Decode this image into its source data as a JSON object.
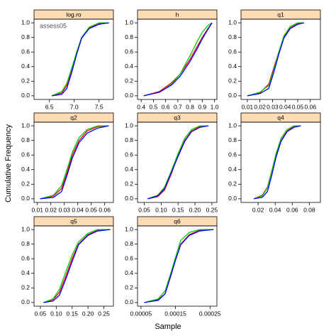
{
  "xlabel": "Sample",
  "ylabel": "Cumulative Frequency",
  "chart_data": [
    {
      "type": "line",
      "title": "log.ro",
      "annotation": "assess05",
      "x": [
        6.55,
        6.75,
        6.85,
        6.95,
        7.05,
        7.15,
        7.3,
        7.5,
        7.7
      ],
      "series": [
        {
          "color": "#ff0000",
          "values": [
            0,
            0.04,
            0.14,
            0.36,
            0.6,
            0.8,
            0.93,
            0.99,
            1
          ]
        },
        {
          "color": "#00cc00",
          "values": [
            0,
            0.06,
            0.17,
            0.38,
            0.6,
            0.8,
            0.94,
            1,
            1
          ]
        },
        {
          "color": "#0000ff",
          "values": [
            0,
            0.02,
            0.1,
            0.32,
            0.57,
            0.79,
            0.92,
            0.98,
            1
          ]
        }
      ],
      "xlim": [
        6.19,
        7.79
      ],
      "xticks": [
        {
          "value": 6.5,
          "label": "6.5"
        },
        {
          "value": 7,
          "label": "7.0"
        },
        {
          "value": 7.5,
          "label": "7.5"
        }
      ],
      "ylim": [
        -0.05,
        1.05
      ],
      "yticks": [
        {
          "value": 0,
          "label": "0.0"
        },
        {
          "value": 0.2,
          "label": "0.2"
        },
        {
          "value": 0.4,
          "label": "0.4"
        },
        {
          "value": 0.6,
          "label": "0.6"
        },
        {
          "value": 0.8,
          "label": "0.8"
        },
        {
          "value": 1,
          "label": "1.0"
        }
      ]
    },
    {
      "type": "line",
      "title": "h",
      "x": [
        0.42,
        0.55,
        0.65,
        0.72,
        0.8,
        0.86,
        0.9,
        0.95,
        0.98
      ],
      "series": [
        {
          "color": "#ff0000",
          "values": [
            0,
            0.06,
            0.18,
            0.3,
            0.5,
            0.68,
            0.8,
            0.93,
            1
          ]
        },
        {
          "color": "#00cc00",
          "values": [
            0,
            0.05,
            0.16,
            0.3,
            0.55,
            0.75,
            0.87,
            0.97,
            1
          ]
        },
        {
          "color": "#0000ff",
          "values": [
            0,
            0.05,
            0.15,
            0.27,
            0.47,
            0.65,
            0.78,
            0.92,
            1
          ]
        }
      ],
      "xlim": [
        0.37,
        1.02
      ],
      "xticks": [
        {
          "value": 0.4,
          "label": "0.4"
        },
        {
          "value": 0.5,
          "label": "0.5"
        },
        {
          "value": 0.6,
          "label": "0.6"
        },
        {
          "value": 0.7,
          "label": "0.7"
        },
        {
          "value": 0.8,
          "label": "0.8"
        },
        {
          "value": 0.9,
          "label": "0.9"
        },
        {
          "value": 1,
          "label": "1.0"
        }
      ],
      "ylim": [
        -0.05,
        1.05
      ],
      "yticks": [
        {
          "value": 0,
          "label": "0.0"
        },
        {
          "value": 0.2,
          "label": "0.2"
        },
        {
          "value": 0.4,
          "label": "0.4"
        },
        {
          "value": 0.6,
          "label": "0.6"
        },
        {
          "value": 0.8,
          "label": "0.8"
        },
        {
          "value": 1,
          "label": "1.0"
        }
      ]
    },
    {
      "type": "line",
      "title": "q1",
      "x": [
        0.01,
        0.02,
        0.027,
        0.031,
        0.035,
        0.039,
        0.044,
        0.05,
        0.055
      ],
      "series": [
        {
          "color": "#ff0000",
          "values": [
            0,
            0.04,
            0.16,
            0.38,
            0.6,
            0.8,
            0.93,
            0.99,
            1
          ]
        },
        {
          "color": "#00cc00",
          "values": [
            0,
            0.05,
            0.14,
            0.35,
            0.6,
            0.82,
            0.95,
            1,
            1
          ]
        },
        {
          "color": "#0000ff",
          "values": [
            0,
            0.03,
            0.1,
            0.32,
            0.57,
            0.79,
            0.92,
            0.98,
            1
          ]
        }
      ],
      "xlim": [
        0.005,
        0.068
      ],
      "xticks": [
        0.01,
        0.02,
        0.03,
        0.04,
        0.05,
        0.06
      ],
      "ylim": [
        -0.05,
        1.05
      ],
      "yticks": [
        {
          "value": 0,
          "label": "0.0"
        },
        {
          "value": 0.2,
          "label": "0.2"
        },
        {
          "value": 0.4,
          "label": "0.4"
        },
        {
          "value": 0.6,
          "label": "0.6"
        },
        {
          "value": 0.8,
          "label": "0.8"
        },
        {
          "value": 1,
          "label": "1.0"
        }
      ]
    },
    {
      "type": "line",
      "title": "q2",
      "x": [
        0.012,
        0.022,
        0.028,
        0.032,
        0.036,
        0.041,
        0.047,
        0.055,
        0.063
      ],
      "series": [
        {
          "color": "#ff0000",
          "values": [
            0,
            0.04,
            0.14,
            0.36,
            0.6,
            0.8,
            0.93,
            0.99,
            1
          ]
        },
        {
          "color": "#00cc00",
          "values": [
            0,
            0.05,
            0.18,
            0.4,
            0.64,
            0.84,
            0.95,
            1,
            1
          ]
        },
        {
          "color": "#0000ff",
          "values": [
            0,
            0.02,
            0.1,
            0.32,
            0.56,
            0.77,
            0.9,
            0.97,
            1
          ]
        }
      ],
      "xlim": [
        0.0075,
        0.0665
      ],
      "xticks": [
        0.01,
        0.02,
        0.03,
        0.04,
        0.05,
        0.06
      ],
      "ylim": [
        -0.05,
        1.05
      ],
      "yticks": [
        {
          "value": 0,
          "label": "0.0"
        },
        {
          "value": 0.2,
          "label": "0.2"
        },
        {
          "value": 0.4,
          "label": "0.4"
        },
        {
          "value": 0.6,
          "label": "0.6"
        },
        {
          "value": 0.8,
          "label": "0.8"
        },
        {
          "value": 1,
          "label": "1.0"
        }
      ]
    },
    {
      "type": "line",
      "title": "q3",
      "x": [
        0.06,
        0.09,
        0.11,
        0.13,
        0.15,
        0.17,
        0.19,
        0.215,
        0.24
      ],
      "series": [
        {
          "color": "#ff0000",
          "values": [
            0,
            0.03,
            0.12,
            0.34,
            0.6,
            0.8,
            0.93,
            0.99,
            1
          ]
        },
        {
          "color": "#00cc00",
          "values": [
            0,
            0.05,
            0.16,
            0.38,
            0.62,
            0.83,
            0.95,
            1,
            1
          ]
        },
        {
          "color": "#0000ff",
          "values": [
            0,
            0.04,
            0.14,
            0.36,
            0.58,
            0.79,
            0.92,
            0.98,
            1
          ]
        }
      ],
      "xlim": [
        0.03,
        0.265
      ],
      "xticks": [
        {
          "value": 0.05,
          "label": "0.05"
        },
        {
          "value": 0.1,
          "label": "0.10"
        },
        {
          "value": 0.15,
          "label": "0.15"
        },
        {
          "value": 0.2,
          "label": "0.20"
        },
        {
          "value": 0.25,
          "label": "0.25"
        }
      ],
      "ylim": [
        -0.05,
        1.05
      ],
      "yticks": [
        {
          "value": 0,
          "label": "0.0"
        },
        {
          "value": 0.2,
          "label": "0.2"
        },
        {
          "value": 0.4,
          "label": "0.4"
        },
        {
          "value": 0.6,
          "label": "0.6"
        },
        {
          "value": 0.8,
          "label": "0.8"
        },
        {
          "value": 1,
          "label": "1.0"
        }
      ]
    },
    {
      "type": "line",
      "title": "q4",
      "x": [
        0.015,
        0.025,
        0.031,
        0.036,
        0.041,
        0.047,
        0.054,
        0.062,
        0.07
      ],
      "series": [
        {
          "color": "#ff0000",
          "values": [
            0,
            0.05,
            0.16,
            0.38,
            0.6,
            0.8,
            0.93,
            0.99,
            1
          ]
        },
        {
          "color": "#00cc00",
          "values": [
            0,
            0.04,
            0.15,
            0.37,
            0.62,
            0.83,
            0.95,
            1,
            1
          ]
        },
        {
          "color": "#0000ff",
          "values": [
            0,
            0.02,
            0.1,
            0.32,
            0.57,
            0.79,
            0.92,
            0.98,
            1
          ]
        }
      ],
      "xlim": [
        0.0,
        0.093
      ],
      "xticks": [
        0.02,
        0.04,
        0.06,
        0.08
      ],
      "ylim": [
        -0.05,
        1.05
      ],
      "yticks": [
        {
          "value": 0,
          "label": "0.0"
        },
        {
          "value": 0.2,
          "label": "0.2"
        },
        {
          "value": 0.4,
          "label": "0.4"
        },
        {
          "value": 0.6,
          "label": "0.6"
        },
        {
          "value": 0.8,
          "label": "0.8"
        },
        {
          "value": 1,
          "label": "1.0"
        }
      ]
    },
    {
      "type": "line",
      "title": "q5",
      "x": [
        0.06,
        0.09,
        0.11,
        0.13,
        0.15,
        0.17,
        0.2,
        0.23,
        0.27
      ],
      "series": [
        {
          "color": "#ff0000",
          "values": [
            0,
            0.04,
            0.14,
            0.36,
            0.6,
            0.8,
            0.93,
            0.99,
            1
          ]
        },
        {
          "color": "#00cc00",
          "values": [
            0,
            0.05,
            0.18,
            0.42,
            0.65,
            0.83,
            0.95,
            1,
            1
          ]
        },
        {
          "color": "#0000ff",
          "values": [
            0,
            0.02,
            0.1,
            0.32,
            0.56,
            0.79,
            0.92,
            0.98,
            1
          ]
        }
      ],
      "xlim": [
        0.03,
        0.28
      ],
      "xticks": [
        {
          "value": 0.05,
          "label": "0.05"
        },
        {
          "value": 0.1,
          "label": "0.10"
        },
        {
          "value": 0.15,
          "label": "0.15"
        },
        {
          "value": 0.2,
          "label": "0.20"
        },
        {
          "value": 0.25,
          "label": "0.25"
        }
      ],
      "ylim": [
        -0.05,
        1.05
      ],
      "yticks": [
        {
          "value": 0,
          "label": "0.0"
        },
        {
          "value": 0.2,
          "label": "0.2"
        },
        {
          "value": 0.4,
          "label": "0.4"
        },
        {
          "value": 0.6,
          "label": "0.6"
        },
        {
          "value": 0.8,
          "label": "0.8"
        },
        {
          "value": 1,
          "label": "1.0"
        }
      ]
    },
    {
      "type": "line",
      "title": "q6",
      "x": [
        6e-05,
        0.0001,
        0.00012,
        0.000135,
        0.00015,
        0.000165,
        0.00019,
        0.00022,
        0.00026
      ],
      "series": [
        {
          "color": "#ff0000",
          "values": [
            0,
            0.04,
            0.12,
            0.34,
            0.58,
            0.8,
            0.93,
            0.99,
            1
          ]
        },
        {
          "color": "#00cc00",
          "values": [
            0,
            0.05,
            0.16,
            0.38,
            0.62,
            0.85,
            0.96,
            1,
            1
          ]
        },
        {
          "color": "#0000ff",
          "values": [
            0,
            0.03,
            0.12,
            0.35,
            0.58,
            0.79,
            0.92,
            0.98,
            1
          ]
        }
      ],
      "xlim": [
        4e-05,
        0.00027
      ],
      "xticks": [
        {
          "value": 5e-05,
          "label": "0.00005"
        },
        {
          "value": 0.00015,
          "label": "0.00015"
        },
        {
          "value": 0.00025,
          "label": "0.00025"
        }
      ],
      "ylim": [
        -0.05,
        1.05
      ],
      "yticks": [
        {
          "value": 0,
          "label": "0.0"
        },
        {
          "value": 0.2,
          "label": "0.2"
        },
        {
          "value": 0.4,
          "label": "0.4"
        },
        {
          "value": 0.6,
          "label": "0.6"
        },
        {
          "value": 0.8,
          "label": "0.8"
        },
        {
          "value": 1,
          "label": "1.0"
        }
      ]
    }
  ]
}
